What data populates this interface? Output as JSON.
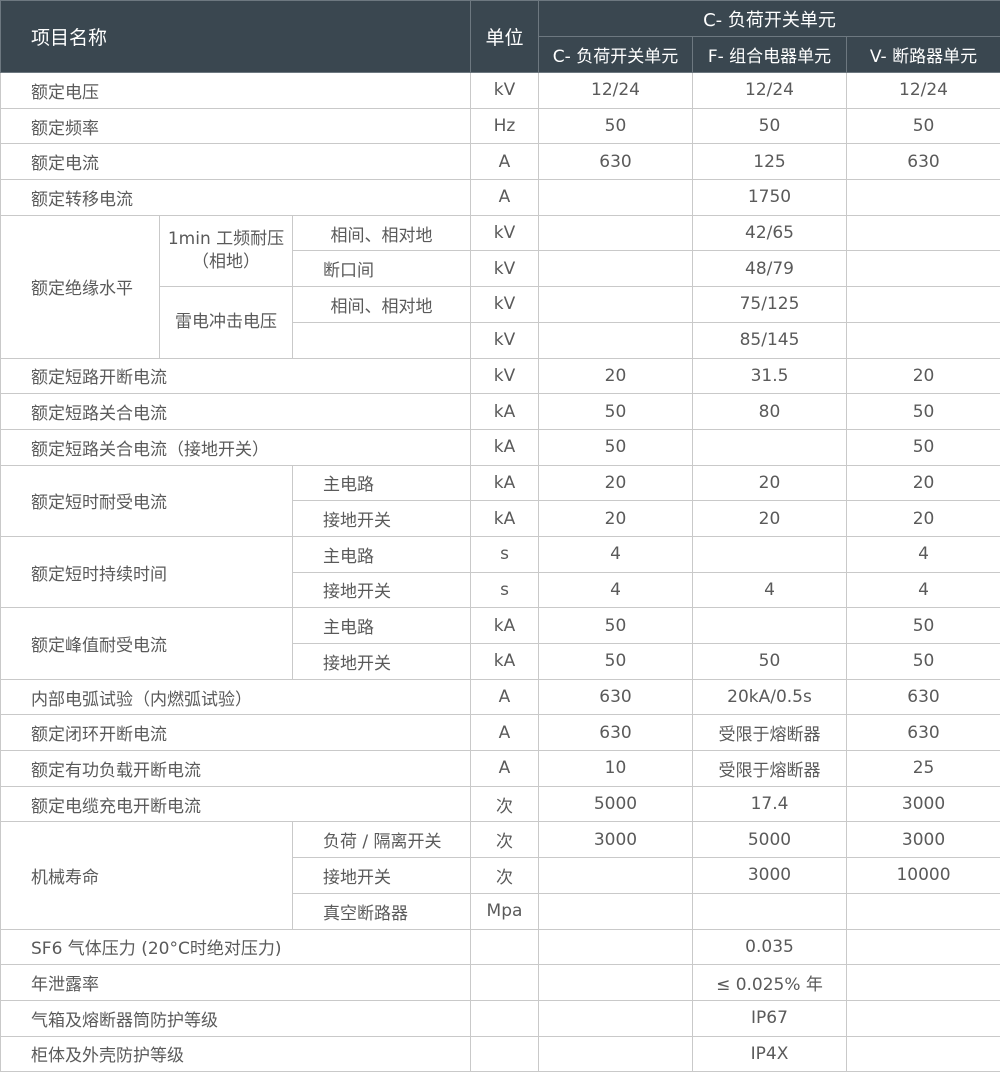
{
  "header": {
    "name": "项目名称",
    "unit": "单位",
    "group": "C- 负荷开关单元",
    "c": "C- 负荷开关单元",
    "f": "F- 组合电器单元",
    "v": "V- 断路器单元"
  },
  "rows": {
    "r0": {
      "label": "额定电压",
      "unit": "kV",
      "c": "12/24",
      "f": "12/24",
      "v": "12/24"
    },
    "r1": {
      "label": "额定频率",
      "unit": "Hz",
      "c": "50",
      "f": "50",
      "v": "50"
    },
    "r2": {
      "label": "额定电流",
      "unit": "A",
      "c": "630",
      "f": "125",
      "v": "630"
    },
    "r3": {
      "label": "额定转移电流",
      "unit": "A",
      "c": "",
      "f": "1750",
      "v": ""
    },
    "ins": {
      "label": "额定绝缘水平",
      "g1": "1min 工频耐压（相地）",
      "g2": "雷电冲击电压",
      "s": [
        {
          "sub": "相间、相对地",
          "unit": "kV",
          "f": "42/65"
        },
        {
          "sub": "断口间",
          "unit": "kV",
          "f": "48/79"
        },
        {
          "sub": "相间、相对地",
          "unit": "kV",
          "f": "75/125"
        },
        {
          "sub": "",
          "unit": "kV",
          "f": "85/145"
        }
      ]
    },
    "r4": {
      "label": "额定短路开断电流",
      "unit": "kV",
      "c": "20",
      "f": "31.5",
      "v": "20"
    },
    "r5": {
      "label": "额定短路关合电流",
      "unit": "kA",
      "c": "50",
      "f": "80",
      "v": "50"
    },
    "r6": {
      "label": "额定短路关合电流（接地开关）",
      "unit": "kA",
      "c": "50",
      "f": "",
      "v": "50"
    },
    "st": {
      "label": "额定短时耐受电流",
      "s": [
        {
          "sub": "主电路",
          "unit": "kA",
          "c": "20",
          "f": "20",
          "v": "20"
        },
        {
          "sub": "接地开关",
          "unit": "kA",
          "c": "20",
          "f": "20",
          "v": "20"
        }
      ]
    },
    "dt": {
      "label": "额定短时持续时间",
      "s": [
        {
          "sub": "主电路",
          "unit": "s",
          "c": "4",
          "f": "",
          "v": "4"
        },
        {
          "sub": "接地开关",
          "unit": "s",
          "c": "4",
          "f": "4",
          "v": "4"
        }
      ]
    },
    "pk": {
      "label": "额定峰值耐受电流",
      "s": [
        {
          "sub": "主电路",
          "unit": "kA",
          "c": "50",
          "f": "",
          "v": "50"
        },
        {
          "sub": "接地开关",
          "unit": "kA",
          "c": "50",
          "f": "50",
          "v": "50"
        }
      ]
    },
    "r7": {
      "label": "内部电弧试验（内燃弧试验）",
      "unit": "A",
      "c": "630",
      "f": "20kA/0.5s",
      "v": "630"
    },
    "r8": {
      "label": "额定闭环开断电流",
      "unit": "A",
      "c": "630",
      "f": "受限于熔断器",
      "v": "630"
    },
    "r9": {
      "label": "额定有功负载开断电流",
      "unit": "A",
      "c": "10",
      "f": "受限于熔断器",
      "v": "25"
    },
    "r10": {
      "label": "额定电缆充电开断电流",
      "unit": "次",
      "c": "5000",
      "f": "17.4",
      "v": "3000"
    },
    "ml": {
      "label": "机械寿命",
      "s": [
        {
          "sub": "负荷 / 隔离开关",
          "unit": "次",
          "c": "3000",
          "f": "5000",
          "v": "3000"
        },
        {
          "sub": "接地开关",
          "unit": "次",
          "c": "",
          "f": "3000",
          "v": "10000"
        },
        {
          "sub": "真空断路器",
          "unit": "Mpa",
          "c": "",
          "f": "",
          "v": ""
        }
      ]
    },
    "r11": {
      "label": "SF6 气体压力 (20°C时绝对压力)",
      "unit": "",
      "c": "",
      "f": "0.035",
      "v": ""
    },
    "r12": {
      "label": "年泄露率",
      "unit": "",
      "c": "",
      "f": "≤ 0.025% 年",
      "v": ""
    },
    "r13": {
      "label": "气箱及熔断器筒防护等级",
      "unit": "",
      "c": "",
      "f": "IP67",
      "v": ""
    },
    "r14": {
      "label": "柜体及外壳防护等级",
      "unit": "",
      "c": "",
      "f": "IP4X",
      "v": ""
    }
  }
}
